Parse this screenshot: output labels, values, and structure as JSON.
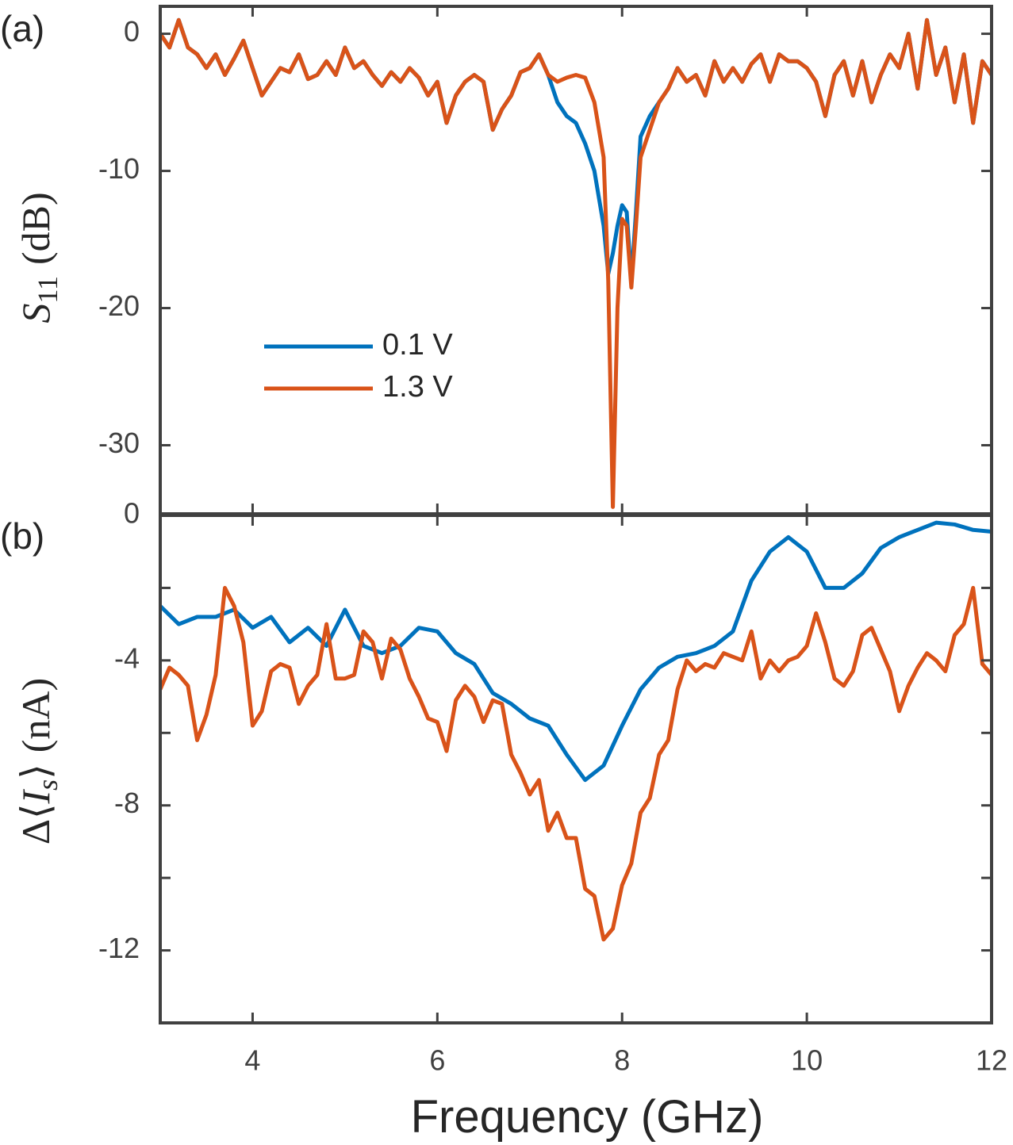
{
  "chart_data": [
    {
      "type": "line",
      "label": "(a)",
      "ylabel": {
        "symbol": "S",
        "subscript": "11",
        "unit": "(dB)"
      },
      "legend": true,
      "xlim": [
        3,
        12
      ],
      "xticks": [
        4,
        6,
        8,
        10,
        12
      ],
      "ylim": [
        -35,
        2
      ],
      "yticks": [
        -30,
        -20,
        -10,
        0
      ],
      "x": [
        3.0,
        3.1,
        3.2,
        3.3,
        3.4,
        3.5,
        3.6,
        3.7,
        3.8,
        3.9,
        4.0,
        4.1,
        4.2,
        4.3,
        4.4,
        4.5,
        4.6,
        4.7,
        4.8,
        4.9,
        5.0,
        5.1,
        5.2,
        5.3,
        5.4,
        5.5,
        5.6,
        5.7,
        5.8,
        5.9,
        6.0,
        6.1,
        6.2,
        6.3,
        6.4,
        6.5,
        6.6,
        6.7,
        6.8,
        6.9,
        7.0,
        7.1,
        7.2,
        7.3,
        7.4,
        7.5,
        7.6,
        7.7,
        7.8,
        7.85,
        7.9,
        7.95,
        8.0,
        8.05,
        8.1,
        8.15,
        8.2,
        8.3,
        8.4,
        8.5,
        8.6,
        8.7,
        8.8,
        8.9,
        9.0,
        9.1,
        9.2,
        9.3,
        9.4,
        9.5,
        9.6,
        9.7,
        9.8,
        9.9,
        10.0,
        10.1,
        10.2,
        10.3,
        10.4,
        10.5,
        10.6,
        10.7,
        10.8,
        10.9,
        11.0,
        11.1,
        11.2,
        11.3,
        11.4,
        11.5,
        11.6,
        11.7,
        11.8,
        11.9,
        12.0
      ],
      "series": [
        {
          "name": "0.1 V",
          "color": "#0072bd",
          "values": [
            0,
            -1,
            1,
            -1,
            -1.5,
            -2.5,
            -1.5,
            -3,
            -1.8,
            -0.5,
            -2.5,
            -4.5,
            -3.5,
            -2.5,
            -2.8,
            -1.5,
            -3.3,
            -3,
            -2,
            -3,
            -1,
            -2.5,
            -2,
            -3,
            -3.8,
            -2.8,
            -3.5,
            -2.5,
            -3.2,
            -4.5,
            -3.5,
            -6.5,
            -4.5,
            -3.5,
            -3,
            -3.5,
            -7,
            -5.5,
            -4.5,
            -2.8,
            -2.5,
            -1.5,
            -3,
            -5,
            -6,
            -6.5,
            -8,
            -10,
            -14,
            -17.5,
            -16,
            -14,
            -12.5,
            -13,
            -18,
            -13,
            -7.5,
            -6,
            -5,
            -4,
            -2.5,
            -3.5,
            -3,
            -4.5,
            -2,
            -3.5,
            -2.5,
            -3.5,
            -2.2,
            -1.5,
            -3.5,
            -1.5,
            -2,
            -2,
            -2.5,
            -3.5,
            -6,
            -3,
            -2,
            -4.5,
            -2,
            -5,
            -3,
            -1.5,
            -2.5,
            0,
            -4,
            1,
            -3,
            -1,
            -5,
            -1.5,
            -6.5,
            -2,
            -3
          ]
        },
        {
          "name": "1.3 V",
          "color": "#d95319",
          "values": [
            0,
            -1,
            1,
            -1,
            -1.5,
            -2.5,
            -1.5,
            -3,
            -1.8,
            -0.5,
            -2.5,
            -4.5,
            -3.5,
            -2.5,
            -2.8,
            -1.5,
            -3.3,
            -3,
            -2,
            -3,
            -1,
            -2.5,
            -2,
            -3,
            -3.8,
            -2.8,
            -3.5,
            -2.5,
            -3.2,
            -4.5,
            -3.5,
            -6.5,
            -4.5,
            -3.5,
            -3,
            -3.5,
            -7,
            -5.5,
            -4.5,
            -2.8,
            -2.5,
            -1.5,
            -3,
            -3.5,
            -3.2,
            -3,
            -3.2,
            -5,
            -9,
            -18,
            -34.5,
            -20,
            -13.5,
            -14,
            -18.5,
            -14,
            -9,
            -7,
            -5,
            -4,
            -2.5,
            -3.5,
            -3,
            -4.5,
            -2,
            -3.5,
            -2.5,
            -3.5,
            -2.2,
            -1.5,
            -3.5,
            -1.5,
            -2,
            -2,
            -2.5,
            -3.5,
            -6,
            -3,
            -2,
            -4.5,
            -2,
            -5,
            -3,
            -1.5,
            -2.5,
            0,
            -4,
            1,
            -3,
            -1,
            -5,
            -1.5,
            -6.5,
            -2,
            -3
          ]
        }
      ]
    },
    {
      "type": "line",
      "label": "(b)",
      "ylabel": {
        "prefix": "Δ⟨",
        "symbol": "I",
        "subscript": "s",
        "suffix": "⟩",
        "unit": "(nA)"
      },
      "xlabel": "Frequency (GHz)",
      "legend": false,
      "xlim": [
        3,
        12
      ],
      "xticks": [
        4,
        6,
        8,
        10,
        12
      ],
      "ylim": [
        -14,
        0
      ],
      "yticks": [
        -12,
        -8,
        -4,
        0
      ],
      "minor_yticks": [
        -10,
        -6,
        -2
      ],
      "series": [
        {
          "name": "0.1 V",
          "color": "#0072bd",
          "x": [
            3.0,
            3.2,
            3.4,
            3.6,
            3.8,
            4.0,
            4.2,
            4.4,
            4.6,
            4.8,
            5.0,
            5.2,
            5.4,
            5.6,
            5.8,
            6.0,
            6.2,
            6.4,
            6.6,
            6.8,
            7.0,
            7.2,
            7.4,
            7.6,
            7.8,
            8.0,
            8.2,
            8.4,
            8.6,
            8.8,
            9.0,
            9.2,
            9.4,
            9.6,
            9.8,
            10.0,
            10.2,
            10.4,
            10.6,
            10.8,
            11.0,
            11.2,
            11.4,
            11.6,
            11.8,
            12.0
          ],
          "values": [
            -2.5,
            -3,
            -2.8,
            -2.8,
            -2.6,
            -3.1,
            -2.8,
            -3.5,
            -3.1,
            -3.6,
            -2.6,
            -3.6,
            -3.8,
            -3.6,
            -3.1,
            -3.2,
            -3.8,
            -4.1,
            -4.9,
            -5.2,
            -5.6,
            -5.8,
            -6.6,
            -7.3,
            -6.9,
            -5.8,
            -4.8,
            -4.2,
            -3.9,
            -3.8,
            -3.6,
            -3.2,
            -1.8,
            -1.0,
            -0.6,
            -1.0,
            -2.0,
            -2.0,
            -1.6,
            -0.9,
            -0.6,
            -0.4,
            -0.2,
            -0.25,
            -0.4,
            -0.45
          ]
        },
        {
          "name": "1.3 V",
          "color": "#d95319",
          "x": [
            3.0,
            3.1,
            3.2,
            3.3,
            3.4,
            3.5,
            3.6,
            3.7,
            3.8,
            3.9,
            4.0,
            4.1,
            4.2,
            4.3,
            4.4,
            4.5,
            4.6,
            4.7,
            4.8,
            4.9,
            5.0,
            5.1,
            5.2,
            5.3,
            5.4,
            5.5,
            5.6,
            5.7,
            5.8,
            5.9,
            6.0,
            6.1,
            6.2,
            6.3,
            6.4,
            6.5,
            6.6,
            6.7,
            6.8,
            6.9,
            7.0,
            7.1,
            7.2,
            7.3,
            7.4,
            7.5,
            7.6,
            7.7,
            7.8,
            7.9,
            8.0,
            8.1,
            8.2,
            8.3,
            8.4,
            8.5,
            8.6,
            8.7,
            8.8,
            8.9,
            9.0,
            9.1,
            9.2,
            9.3,
            9.4,
            9.5,
            9.6,
            9.7,
            9.8,
            9.9,
            10.0,
            10.1,
            10.2,
            10.3,
            10.4,
            10.5,
            10.6,
            10.7,
            10.8,
            10.9,
            11.0,
            11.1,
            11.2,
            11.3,
            11.4,
            11.5,
            11.6,
            11.7,
            11.8,
            11.9,
            12.0
          ],
          "values": [
            -4.8,
            -4.2,
            -4.4,
            -4.7,
            -6.2,
            -5.5,
            -4.4,
            -2.0,
            -2.5,
            -3.5,
            -5.8,
            -5.4,
            -4.3,
            -4.1,
            -4.2,
            -5.2,
            -4.7,
            -4.4,
            -3.0,
            -4.5,
            -4.5,
            -4.4,
            -3.2,
            -3.5,
            -4.5,
            -3.4,
            -3.7,
            -4.5,
            -5.0,
            -5.6,
            -5.7,
            -6.5,
            -5.1,
            -4.7,
            -5.0,
            -5.7,
            -5.1,
            -5.2,
            -6.6,
            -7.1,
            -7.7,
            -7.3,
            -8.7,
            -8.2,
            -8.9,
            -8.9,
            -10.3,
            -10.5,
            -11.7,
            -11.4,
            -10.2,
            -9.6,
            -8.2,
            -7.8,
            -6.6,
            -6.2,
            -4.8,
            -4.0,
            -4.3,
            -4.1,
            -4.2,
            -3.8,
            -3.9,
            -4.0,
            -3.2,
            -4.5,
            -4.0,
            -4.3,
            -4.0,
            -3.9,
            -3.6,
            -2.7,
            -3.5,
            -4.5,
            -4.7,
            -4.3,
            -3.3,
            -3.1,
            -3.7,
            -4.3,
            -5.4,
            -4.7,
            -4.2,
            -3.8,
            -4.0,
            -4.3,
            -3.3,
            -3.0,
            -2.0,
            -4.1,
            -4.4
          ]
        }
      ]
    }
  ]
}
